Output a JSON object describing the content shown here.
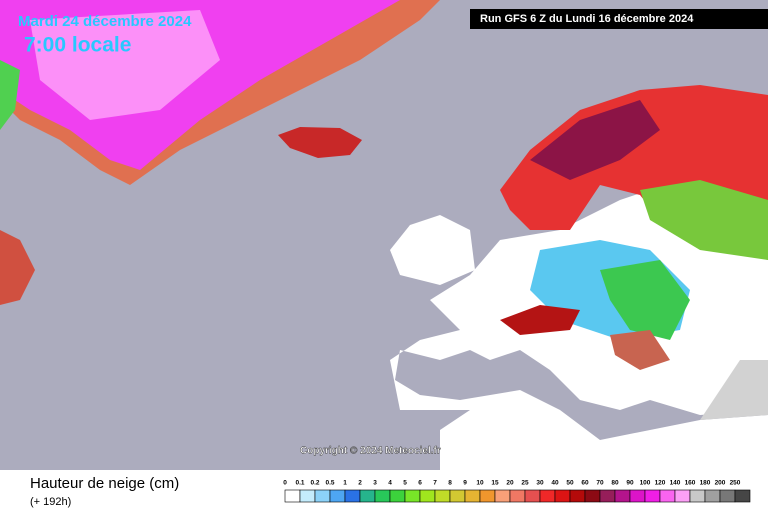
{
  "header": {
    "date": "Mardi 24 décembre 2024",
    "time": "7:00 locale",
    "run": "Run GFS 6 Z du Lundi 16 décembre 2024"
  },
  "copyright": "Copyright © 2024 Meteociel.fr",
  "footer": {
    "title": "Hauteur de neige (cm)",
    "lead": "(+ 192h)"
  },
  "legend": {
    "items": [
      {
        "label": "0",
        "color": "#ffffff"
      },
      {
        "label": "0.1",
        "color": "#c4ecfc"
      },
      {
        "label": "0.2",
        "color": "#8cd2f8"
      },
      {
        "label": "0.5",
        "color": "#4ea6f2"
      },
      {
        "label": "1",
        "color": "#2a72e6"
      },
      {
        "label": "2",
        "color": "#26b48c"
      },
      {
        "label": "3",
        "color": "#28c85a"
      },
      {
        "label": "4",
        "color": "#3cd23c"
      },
      {
        "label": "5",
        "color": "#78e628"
      },
      {
        "label": "6",
        "color": "#a0e61e"
      },
      {
        "label": "7",
        "color": "#c0dc28"
      },
      {
        "label": "8",
        "color": "#d2c832"
      },
      {
        "label": "9",
        "color": "#e6b432"
      },
      {
        "label": "10",
        "color": "#f0962d"
      },
      {
        "label": "15",
        "color": "#f8a078"
      },
      {
        "label": "20",
        "color": "#f07864"
      },
      {
        "label": "25",
        "color": "#e65050"
      },
      {
        "label": "30",
        "color": "#f02828"
      },
      {
        "label": "40",
        "color": "#dc1414"
      },
      {
        "label": "50",
        "color": "#b40a0a"
      },
      {
        "label": "60",
        "color": "#8c0a14"
      },
      {
        "label": "70",
        "color": "#961e5a"
      },
      {
        "label": "80",
        "color": "#b4148c"
      },
      {
        "label": "90",
        "color": "#dc14c8"
      },
      {
        "label": "100",
        "color": "#f01ee6"
      },
      {
        "label": "120",
        "color": "#fa64f0"
      },
      {
        "label": "140",
        "color": "#fca0f6"
      },
      {
        "label": "160",
        "color": "#c8c8c8"
      },
      {
        "label": "180",
        "color": "#a0a0a0"
      },
      {
        "label": "200",
        "color": "#787878"
      },
      {
        "label": "250",
        "color": "#464646"
      }
    ]
  }
}
